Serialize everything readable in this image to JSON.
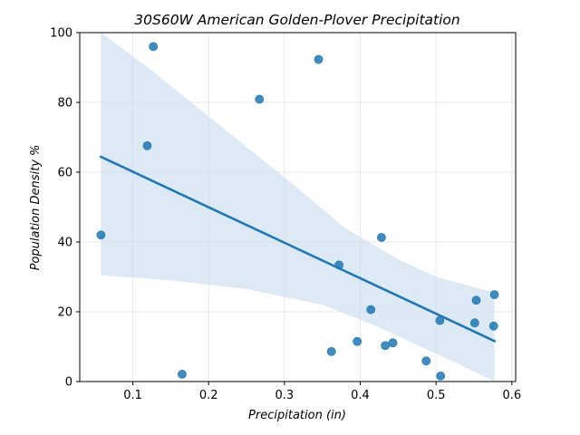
{
  "chart_data": {
    "type": "scatter",
    "title": "30S60W American Golden-Plover Precipitation",
    "xlabel": "Precipitation (in)",
    "ylabel": "Population Density %",
    "xlim": [
      0.03,
      0.605
    ],
    "ylim": [
      0,
      100
    ],
    "xticks": [
      "0.1",
      "0.2",
      "0.3",
      "0.4",
      "0.5",
      "0.6"
    ],
    "yticks": [
      "0",
      "20",
      "40",
      "60",
      "80",
      "100"
    ],
    "grid": true,
    "legend": "none",
    "colors": {
      "points": "#1f77b4",
      "line": "#1f77b4",
      "band": "#c6dbef"
    },
    "points": [
      {
        "x": 0.058,
        "y": 42.0
      },
      {
        "x": 0.119,
        "y": 67.6
      },
      {
        "x": 0.127,
        "y": 96.0
      },
      {
        "x": 0.165,
        "y": 2.1
      },
      {
        "x": 0.267,
        "y": 80.9
      },
      {
        "x": 0.345,
        "y": 92.3
      },
      {
        "x": 0.362,
        "y": 8.6
      },
      {
        "x": 0.372,
        "y": 33.4
      },
      {
        "x": 0.396,
        "y": 11.5
      },
      {
        "x": 0.414,
        "y": 20.6
      },
      {
        "x": 0.428,
        "y": 41.3
      },
      {
        "x": 0.433,
        "y": 10.3
      },
      {
        "x": 0.443,
        "y": 11.1
      },
      {
        "x": 0.487,
        "y": 5.9
      },
      {
        "x": 0.505,
        "y": 17.5
      },
      {
        "x": 0.506,
        "y": 1.6
      },
      {
        "x": 0.551,
        "y": 16.8
      },
      {
        "x": 0.553,
        "y": 23.3
      },
      {
        "x": 0.576,
        "y": 15.9
      },
      {
        "x": 0.577,
        "y": 24.9
      }
    ],
    "regression": {
      "x_range": [
        0.058,
        0.577
      ],
      "y_start": 64.4,
      "y_end": 11.6,
      "ci_upper": [
        {
          "x": 0.058,
          "y": 100.0
        },
        {
          "x": 0.12,
          "y": 90.0
        },
        {
          "x": 0.2,
          "y": 76.0
        },
        {
          "x": 0.3,
          "y": 58.5
        },
        {
          "x": 0.38,
          "y": 44.0
        },
        {
          "x": 0.45,
          "y": 35.0
        },
        {
          "x": 0.5,
          "y": 30.0
        },
        {
          "x": 0.577,
          "y": 25.5
        }
      ],
      "ci_lower": [
        {
          "x": 0.058,
          "y": 30.5
        },
        {
          "x": 0.15,
          "y": 29.0
        },
        {
          "x": 0.25,
          "y": 26.5
        },
        {
          "x": 0.35,
          "y": 22.0
        },
        {
          "x": 0.42,
          "y": 16.0
        },
        {
          "x": 0.48,
          "y": 10.0
        },
        {
          "x": 0.53,
          "y": 5.0
        },
        {
          "x": 0.577,
          "y": 0.0
        }
      ]
    }
  }
}
